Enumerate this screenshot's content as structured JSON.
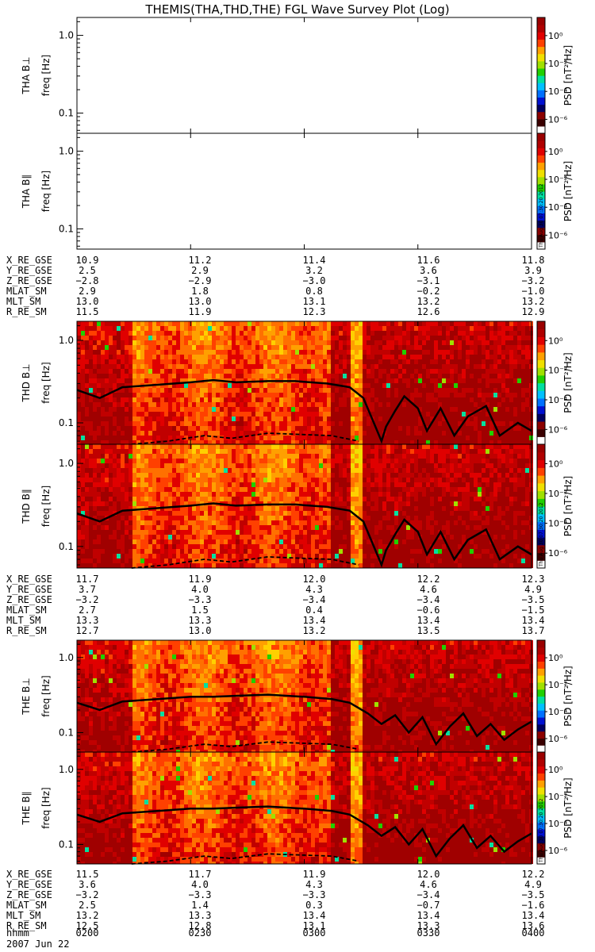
{
  "title": "THEMIS(THA,THD,THE) FGL Wave Survey Plot (Log)",
  "stamp": "Thu Aug 30 07:30:20 2012",
  "colorbar": {
    "label": "PSD [nT²/Hz]",
    "ticks": [
      "10⁰",
      "10⁻²",
      "10⁻⁴",
      "10⁻⁶"
    ],
    "tick_exponents": [
      0,
      -2,
      -4,
      -6
    ],
    "range_log": [
      -7,
      1.3
    ],
    "colors": [
      "#ffffff",
      "#3a0000",
      "#8a0000",
      "#000060",
      "#0010d0",
      "#0070ff",
      "#00c0ff",
      "#00e0a0",
      "#20d000",
      "#a0e000",
      "#f0e000",
      "#ffa000",
      "#ff4000",
      "#e00000",
      "#b00000",
      "#9a0000"
    ]
  },
  "time_axis": {
    "label": "hhmm",
    "ticks": [
      "0200",
      "0230",
      "0300",
      "0330",
      "0400"
    ],
    "date": "2007 Jun 22"
  },
  "probes": [
    {
      "id": "THA",
      "panels": [
        {
          "ylabel": "THA B⊥",
          "unit": "freq [Hz]",
          "has_data": false
        },
        {
          "ylabel": "THA B∥",
          "unit": "freq [Hz]",
          "has_data": false
        }
      ],
      "ephemeris": [
        {
          "name": "X_RE_GSE",
          "values": [
            "10.9",
            "11.2",
            "11.4",
            "11.6",
            "11.8"
          ]
        },
        {
          "name": "Y_RE_GSE",
          "values": [
            "2.5",
            "2.9",
            "3.2",
            "3.6",
            "3.9"
          ]
        },
        {
          "name": "Z_RE_GSE",
          "values": [
            "−2.8",
            "−2.9",
            "−3.0",
            "−3.1",
            "−3.2"
          ]
        },
        {
          "name": "MLAT_SM",
          "values": [
            "2.9",
            "1.8",
            "0.8",
            "−0.2",
            "−1.0"
          ]
        },
        {
          "name": "MLT_SM",
          "values": [
            "13.0",
            "13.0",
            "13.1",
            "13.2",
            "13.2"
          ]
        },
        {
          "name": "R_RE_SM",
          "values": [
            "11.5",
            "11.9",
            "12.3",
            "12.6",
            "12.9"
          ]
        }
      ]
    },
    {
      "id": "THD",
      "panels": [
        {
          "ylabel": "THD B⊥",
          "unit": "freq [Hz]",
          "has_data": true
        },
        {
          "ylabel": "THD B∥",
          "unit": "freq [Hz]",
          "has_data": true
        }
      ],
      "ephemeris": [
        {
          "name": "X_RE_GSE",
          "values": [
            "11.7",
            "11.9",
            "12.0",
            "12.2",
            "12.3"
          ]
        },
        {
          "name": "Y_RE_GSE",
          "values": [
            "3.7",
            "4.0",
            "4.3",
            "4.6",
            "4.9"
          ]
        },
        {
          "name": "Z_RE_GSE",
          "values": [
            "−3.2",
            "−3.3",
            "−3.4",
            "−3.4",
            "−3.5"
          ]
        },
        {
          "name": "MLAT_SM",
          "values": [
            "2.7",
            "1.5",
            "0.4",
            "−0.6",
            "−1.5"
          ]
        },
        {
          "name": "MLT_SM",
          "values": [
            "13.3",
            "13.3",
            "13.4",
            "13.4",
            "13.4"
          ]
        },
        {
          "name": "R_RE_SM",
          "values": [
            "12.7",
            "13.0",
            "13.2",
            "13.5",
            "13.7"
          ]
        }
      ]
    },
    {
      "id": "THE",
      "panels": [
        {
          "ylabel": "THE B⊥",
          "unit": "freq [Hz]",
          "has_data": true
        },
        {
          "ylabel": "THE B∥",
          "unit": "freq [Hz]",
          "has_data": true
        }
      ],
      "ephemeris": [
        {
          "name": "X_RE_GSE",
          "values": [
            "11.5",
            "11.7",
            "11.9",
            "12.0",
            "12.2"
          ]
        },
        {
          "name": "Y_RE_GSE",
          "values": [
            "3.6",
            "4.0",
            "4.3",
            "4.6",
            "4.9"
          ]
        },
        {
          "name": "Z_RE_GSE",
          "values": [
            "−3.2",
            "−3.3",
            "−3.3",
            "−3.4",
            "−3.5"
          ]
        },
        {
          "name": "MLAT_SM",
          "values": [
            "2.5",
            "1.4",
            "0.3",
            "−0.7",
            "−1.6"
          ]
        },
        {
          "name": "MLT_SM",
          "values": [
            "13.2",
            "13.3",
            "13.4",
            "13.4",
            "13.4"
          ]
        },
        {
          "name": "R_RE_SM",
          "values": [
            "12.5",
            "12.8",
            "13.1",
            "13.3",
            "13.6"
          ]
        }
      ]
    }
  ],
  "chart_data": {
    "type": "heatmap",
    "title": "THEMIS(THA,THD,THE) FGL Wave Survey Plot (Log)",
    "xlabel": "hhmm",
    "x_ticks": [
      "0200",
      "0230",
      "0300",
      "0330",
      "0400"
    ],
    "ylabel": "freq [Hz]",
    "yscale": "log",
    "ylim": [
      0.055,
      1.7
    ],
    "y_ticks": [
      1.0,
      0.1
    ],
    "colorbar_label": "PSD [nT²/Hz]",
    "color_scale": "log",
    "colorbar_range_log10": [
      -7,
      1.3
    ],
    "panels": [
      "THA B⊥",
      "THA B∥",
      "THD B⊥",
      "THD B∥",
      "THE B⊥",
      "THE B∥"
    ],
    "overlay_lines": [
      {
        "panel": "THD B⊥",
        "style": "solid",
        "x_fraction": [
          0,
          0.05,
          0.1,
          0.18,
          0.25,
          0.3,
          0.35,
          0.42,
          0.48,
          0.55,
          0.6,
          0.63,
          0.65,
          0.67,
          0.68,
          0.7,
          0.72,
          0.75,
          0.77,
          0.8,
          0.83,
          0.86,
          0.9,
          0.93,
          0.97,
          1.0
        ],
        "y_hz": [
          0.25,
          0.2,
          0.27,
          0.29,
          0.31,
          0.33,
          0.31,
          0.32,
          0.32,
          0.3,
          0.27,
          0.2,
          0.11,
          0.06,
          0.09,
          0.14,
          0.21,
          0.15,
          0.08,
          0.15,
          0.07,
          0.12,
          0.16,
          0.07,
          0.1,
          0.08
        ]
      },
      {
        "panel": "THD B⊥",
        "style": "dashed",
        "x_fraction": [
          0.12,
          0.2,
          0.28,
          0.34,
          0.42,
          0.5,
          0.56,
          0.62
        ],
        "y_hz": [
          0.055,
          0.06,
          0.07,
          0.065,
          0.075,
          0.072,
          0.07,
          0.06
        ]
      },
      {
        "panel": "THD B∥",
        "style": "solid",
        "x_fraction": [
          0,
          0.05,
          0.1,
          0.18,
          0.25,
          0.3,
          0.35,
          0.42,
          0.48,
          0.55,
          0.6,
          0.63,
          0.65,
          0.67,
          0.68,
          0.7,
          0.72,
          0.75,
          0.77,
          0.8,
          0.83,
          0.86,
          0.9,
          0.93,
          0.97,
          1.0
        ],
        "y_hz": [
          0.25,
          0.2,
          0.27,
          0.29,
          0.31,
          0.33,
          0.31,
          0.32,
          0.32,
          0.3,
          0.27,
          0.2,
          0.11,
          0.06,
          0.09,
          0.14,
          0.21,
          0.15,
          0.08,
          0.15,
          0.07,
          0.12,
          0.16,
          0.07,
          0.1,
          0.08
        ]
      },
      {
        "panel": "THD B∥",
        "style": "dashed",
        "x_fraction": [
          0.12,
          0.2,
          0.28,
          0.34,
          0.42,
          0.5,
          0.56,
          0.62
        ],
        "y_hz": [
          0.055,
          0.06,
          0.07,
          0.065,
          0.075,
          0.072,
          0.07,
          0.06
        ]
      },
      {
        "panel": "THE B⊥",
        "style": "solid",
        "x_fraction": [
          0,
          0.05,
          0.1,
          0.18,
          0.25,
          0.3,
          0.36,
          0.42,
          0.5,
          0.56,
          0.6,
          0.64,
          0.67,
          0.7,
          0.73,
          0.76,
          0.79,
          0.82,
          0.85,
          0.88,
          0.91,
          0.94,
          0.97,
          1.0
        ],
        "y_hz": [
          0.25,
          0.2,
          0.26,
          0.28,
          0.3,
          0.3,
          0.31,
          0.32,
          0.3,
          0.28,
          0.25,
          0.18,
          0.13,
          0.17,
          0.1,
          0.16,
          0.07,
          0.12,
          0.18,
          0.09,
          0.13,
          0.08,
          0.11,
          0.14
        ]
      },
      {
        "panel": "THE B⊥",
        "style": "dashed",
        "x_fraction": [
          0.12,
          0.2,
          0.28,
          0.34,
          0.42,
          0.5,
          0.56,
          0.62
        ],
        "y_hz": [
          0.055,
          0.06,
          0.07,
          0.065,
          0.075,
          0.072,
          0.07,
          0.06
        ]
      },
      {
        "panel": "THE B∥",
        "style": "solid",
        "x_fraction": [
          0,
          0.05,
          0.1,
          0.18,
          0.25,
          0.3,
          0.36,
          0.42,
          0.5,
          0.56,
          0.6,
          0.64,
          0.67,
          0.7,
          0.73,
          0.76,
          0.79,
          0.82,
          0.85,
          0.88,
          0.91,
          0.94,
          0.97,
          1.0
        ],
        "y_hz": [
          0.25,
          0.2,
          0.26,
          0.28,
          0.3,
          0.3,
          0.31,
          0.32,
          0.3,
          0.28,
          0.25,
          0.18,
          0.13,
          0.17,
          0.1,
          0.16,
          0.07,
          0.12,
          0.18,
          0.09,
          0.13,
          0.08,
          0.11,
          0.14
        ]
      },
      {
        "panel": "THE B∥",
        "style": "dashed",
        "x_fraction": [
          0.12,
          0.2,
          0.28,
          0.34,
          0.42,
          0.5,
          0.56,
          0.62
        ],
        "y_hz": [
          0.055,
          0.06,
          0.07,
          0.065,
          0.075,
          0.072,
          0.07,
          0.06
        ]
      }
    ]
  }
}
